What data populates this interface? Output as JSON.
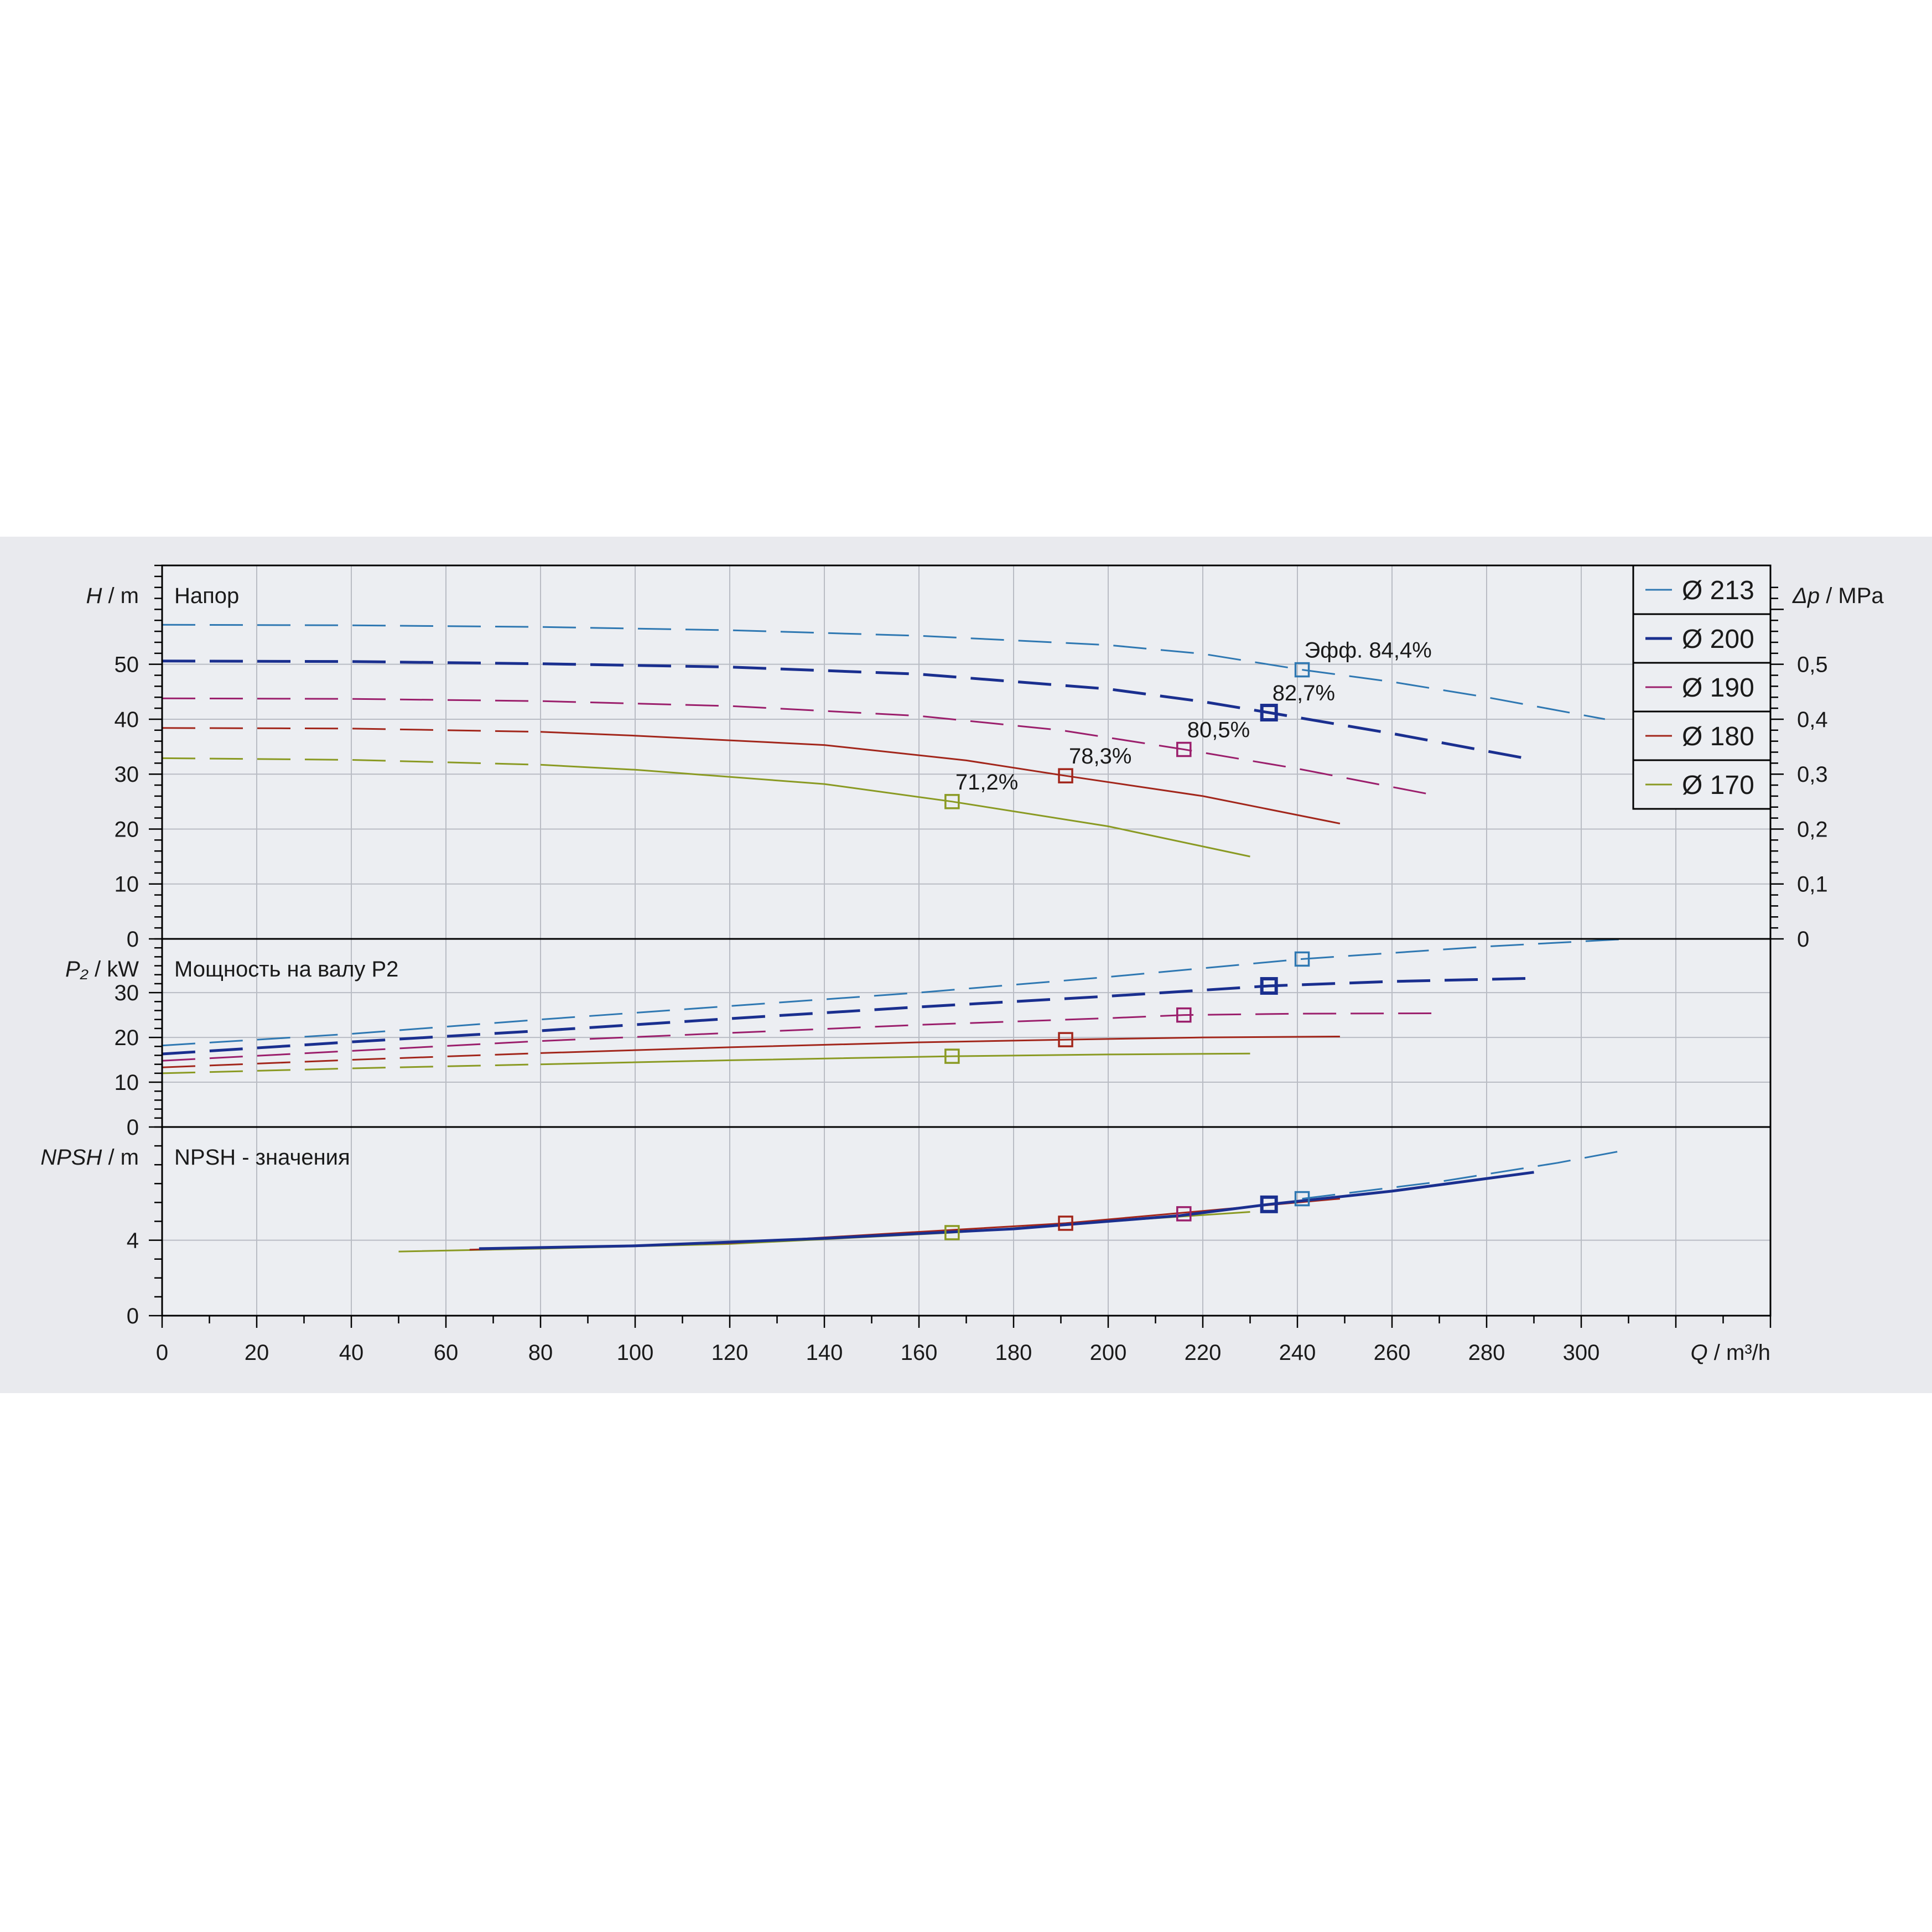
{
  "chart_data": {
    "type": "line",
    "x_axis": {
      "label_var": "Q",
      "label_unit": "m³/h",
      "range": [
        0,
        340
      ],
      "ticks": [
        0,
        20,
        40,
        60,
        80,
        100,
        120,
        140,
        160,
        180,
        200,
        220,
        240,
        260,
        280,
        300
      ]
    },
    "legend": {
      "placement": "top-right",
      "entries": [
        "Ø 213",
        "Ø 200",
        "Ø 190",
        "Ø 180",
        "Ø 170"
      ]
    },
    "colors": {
      "Ø 213": "#2f78b2",
      "Ø 200": "#1a2f8f",
      "Ø 190": "#9b1f6c",
      "Ø 180": "#a2261b",
      "Ø 170": "#8a9a23"
    },
    "panels": [
      {
        "id": "head",
        "title": "Напор",
        "y_var": "H",
        "y_unit": "m",
        "y_range": [
          0,
          68
        ],
        "y_ticks": [
          0,
          10,
          20,
          30,
          40,
          50
        ],
        "y2_var": "Δp",
        "y2_unit": "MPa",
        "y2_ticks": [
          "0",
          "0,1",
          "0,2",
          "0,3",
          "0,4",
          "0,5"
        ],
        "series": [
          {
            "name": "Ø 213",
            "style": "dashed",
            "points": [
              [
                0,
                57.2
              ],
              [
                40,
                57.1
              ],
              [
                80,
                56.8
              ],
              [
                120,
                56.2
              ],
              [
                160,
                55.2
              ],
              [
                200,
                53.5
              ],
              [
                220,
                51.9
              ],
              [
                241,
                49.0
              ],
              [
                260,
                46.8
              ],
              [
                280,
                44.0
              ],
              [
                305,
                40.0
              ]
            ]
          },
          {
            "name": "Ø 200",
            "style": "dashed",
            "points": [
              [
                0,
                50.6
              ],
              [
                40,
                50.5
              ],
              [
                80,
                50.1
              ],
              [
                120,
                49.5
              ],
              [
                160,
                48.2
              ],
              [
                200,
                45.5
              ],
              [
                220,
                43.2
              ],
              [
                234,
                41.2
              ],
              [
                260,
                37.4
              ],
              [
                290,
                32.6
              ]
            ]
          },
          {
            "name": "Ø 190",
            "style": "dashed",
            "points": [
              [
                0,
                43.8
              ],
              [
                40,
                43.7
              ],
              [
                80,
                43.3
              ],
              [
                120,
                42.4
              ],
              [
                160,
                40.6
              ],
              [
                190,
                38.0
              ],
              [
                216,
                34.5
              ],
              [
                240,
                31.0
              ],
              [
                270,
                26.0
              ]
            ]
          },
          {
            "name": "Ø 180",
            "style": "mixed",
            "points": [
              [
                0,
                38.4
              ],
              [
                40,
                38.3
              ],
              [
                80,
                37.7
              ],
              [
                100,
                37.0
              ],
              [
                140,
                35.3
              ],
              [
                170,
                32.5
              ],
              [
                191,
                29.7
              ],
              [
                220,
                26.0
              ],
              [
                249,
                21.0
              ]
            ]
          },
          {
            "name": "Ø 170",
            "style": "mixed",
            "points": [
              [
                0,
                32.9
              ],
              [
                40,
                32.6
              ],
              [
                80,
                31.7
              ],
              [
                100,
                30.8
              ],
              [
                140,
                28.2
              ],
              [
                167,
                25.0
              ],
              [
                200,
                20.5
              ],
              [
                230,
                15.0
              ]
            ]
          }
        ],
        "markers": [
          {
            "series": "Ø 213",
            "x": 241,
            "y": 49.0,
            "label": "Эфф.   84,4%"
          },
          {
            "series": "Ø 200",
            "x": 234,
            "y": 41.2,
            "label": "82,7%"
          },
          {
            "series": "Ø 190",
            "x": 216,
            "y": 34.5,
            "label": "80,5%"
          },
          {
            "series": "Ø 180",
            "x": 191,
            "y": 29.7,
            "label": "78,3%"
          },
          {
            "series": "Ø 170",
            "x": 167,
            "y": 25.0,
            "label": "71,2%"
          }
        ]
      },
      {
        "id": "power",
        "title": "Мощность  на валу P2",
        "y_var": "P₂",
        "y_unit": "kW",
        "y_range": [
          0,
          42
        ],
        "y_ticks": [
          0,
          10,
          20,
          30
        ],
        "series": [
          {
            "name": "Ø 213",
            "style": "dashed",
            "points": [
              [
                0,
                18.2
              ],
              [
                40,
                20.8
              ],
              [
                80,
                24.0
              ],
              [
                120,
                27.0
              ],
              [
                160,
                30.0
              ],
              [
                200,
                33.5
              ],
              [
                241,
                37.5
              ],
              [
                280,
                40.3
              ],
              [
                310,
                42.0
              ]
            ]
          },
          {
            "name": "Ø 200",
            "style": "dashed",
            "points": [
              [
                0,
                16.3
              ],
              [
                40,
                19.0
              ],
              [
                80,
                21.5
              ],
              [
                120,
                24.2
              ],
              [
                160,
                26.8
              ],
              [
                200,
                29.2
              ],
              [
                234,
                31.5
              ],
              [
                260,
                32.5
              ],
              [
                290,
                33.2
              ]
            ]
          },
          {
            "name": "Ø 190",
            "style": "dashed",
            "points": [
              [
                0,
                14.8
              ],
              [
                40,
                17.0
              ],
              [
                80,
                19.2
              ],
              [
                120,
                21.0
              ],
              [
                160,
                22.8
              ],
              [
                200,
                24.3
              ],
              [
                216,
                25.0
              ],
              [
                240,
                25.3
              ],
              [
                270,
                25.4
              ]
            ]
          },
          {
            "name": "Ø 180",
            "style": "mixed",
            "points": [
              [
                0,
                13.3
              ],
              [
                40,
                15.0
              ],
              [
                80,
                16.5
              ],
              [
                120,
                17.8
              ],
              [
                160,
                18.9
              ],
              [
                191,
                19.5
              ],
              [
                220,
                20.0
              ],
              [
                249,
                20.2
              ]
            ]
          },
          {
            "name": "Ø 170",
            "style": "mixed",
            "points": [
              [
                0,
                12.0
              ],
              [
                40,
                13.1
              ],
              [
                80,
                14.0
              ],
              [
                120,
                14.9
              ],
              [
                167,
                15.8
              ],
              [
                200,
                16.2
              ],
              [
                230,
                16.4
              ]
            ]
          }
        ],
        "markers": [
          {
            "series": "Ø 213",
            "x": 241,
            "y": 37.5
          },
          {
            "series": "Ø 200",
            "x": 234,
            "y": 31.5
          },
          {
            "series": "Ø 190",
            "x": 216,
            "y": 25.0
          },
          {
            "series": "Ø 180",
            "x": 191,
            "y": 19.5
          },
          {
            "series": "Ø 170",
            "x": 167,
            "y": 15.8
          }
        ]
      },
      {
        "id": "npsh",
        "title": "NPSH  - значения",
        "y_var": "NPSH",
        "y_unit": "m",
        "y_range": [
          0,
          10
        ],
        "y_ticks": [
          0,
          4
        ],
        "series": [
          {
            "name": "Ø 170",
            "style": "solid",
            "points": [
              [
                50,
                3.4
              ],
              [
                80,
                3.55
              ],
              [
                120,
                3.8
              ],
              [
                167,
                4.4
              ],
              [
                200,
                5.0
              ],
              [
                230,
                5.5
              ]
            ]
          },
          {
            "name": "Ø 180",
            "style": "solid",
            "points": [
              [
                65,
                3.5
              ],
              [
                120,
                3.85
              ],
              [
                191,
                4.9
              ],
              [
                249,
                6.2
              ]
            ]
          },
          {
            "name": "Ø 200",
            "style": "solid",
            "points": [
              [
                67,
                3.55
              ],
              [
                100,
                3.7
              ],
              [
                140,
                4.1
              ],
              [
                180,
                4.6
              ],
              [
                215,
                5.3
              ],
              [
                234,
                5.9
              ],
              [
                260,
                6.6
              ],
              [
                290,
                7.6
              ]
            ]
          },
          {
            "name": "Ø 213",
            "style": "dashed",
            "points": [
              [
                241,
                6.2
              ],
              [
                270,
                7.1
              ],
              [
                295,
                8.1
              ],
              [
                310,
                8.8
              ]
            ]
          }
        ],
        "markers": [
          {
            "series": "Ø 213",
            "x": 241,
            "y": 6.2
          },
          {
            "series": "Ø 200",
            "x": 234,
            "y": 5.9
          },
          {
            "series": "Ø 190",
            "x": 216,
            "y": 5.4
          },
          {
            "series": "Ø 180",
            "x": 191,
            "y": 4.9
          },
          {
            "series": "Ø 170",
            "x": 167,
            "y": 4.4
          }
        ]
      }
    ]
  }
}
